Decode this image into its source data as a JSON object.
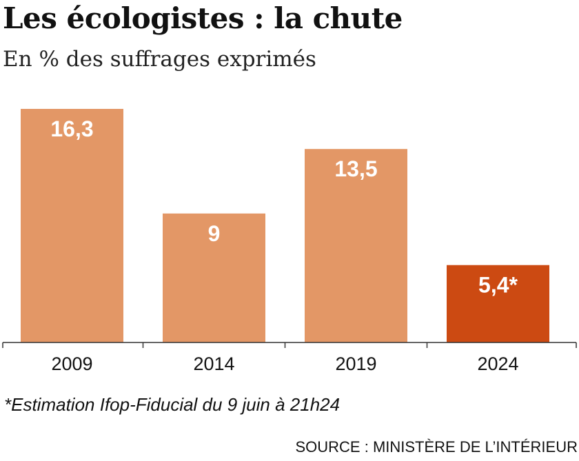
{
  "chart_data": {
    "type": "bar",
    "title": "Les écologistes : la chute",
    "subtitle": "En % des suffrages exprimés",
    "categories": [
      "2009",
      "2014",
      "2019",
      "2024"
    ],
    "values": [
      16.3,
      9,
      13.5,
      5.4
    ],
    "data_labels": [
      "16,3",
      "9",
      "13,5",
      "5,4*"
    ],
    "colors": [
      "#E39766",
      "#E39766",
      "#E39766",
      "#CC4A12"
    ],
    "label_color": "#FFFFFF",
    "ylim": [
      0,
      16.3
    ],
    "grid": false,
    "legend": "none",
    "note": "*Estimation Ifop-Fiducial du 9 juin à 21h24",
    "source": "SOURCE : MINISTÈRE DE L’INTÉRIEUR"
  }
}
